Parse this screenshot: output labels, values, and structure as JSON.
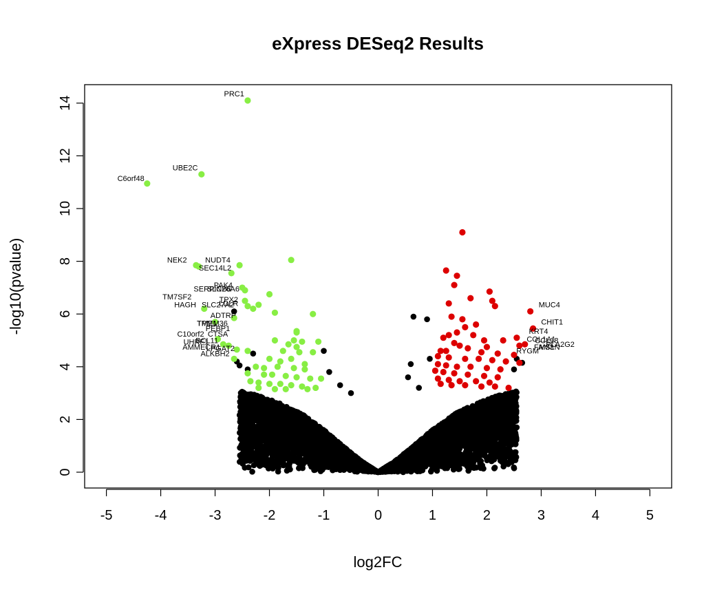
{
  "chart_data": {
    "type": "scatter",
    "title": "eXpress DESeq2 Results",
    "xlabel": "log2FC",
    "ylabel": "-log10(pvalue)",
    "xlim": [
      -5.4,
      5.4
    ],
    "ylim": [
      -0.6,
      14.7
    ],
    "xticks": [
      -5,
      -4,
      -3,
      -2,
      -1,
      0,
      1,
      2,
      3,
      4,
      5
    ],
    "xtick_labels": [
      "-5",
      "-4",
      "-3",
      "-2",
      "-1",
      "0",
      "1",
      "2",
      "3",
      "4",
      "5"
    ],
    "yticks": [
      0,
      2,
      4,
      6,
      8,
      10,
      12,
      14
    ],
    "ytick_labels": [
      "0",
      "2",
      "4",
      "6",
      "8",
      "10",
      "12",
      "14"
    ],
    "grid": false,
    "legend": "none",
    "colors": {
      "not_significant": "#000000",
      "down_regulated": "#88ee44",
      "up_regulated": "#dd0000"
    },
    "background_cloud": {
      "description_shown": "dense black cloud of non-significant genes",
      "envelope_x": [
        -2.6,
        -2.2,
        -1.8,
        -1.4,
        -1.0,
        -0.6,
        -0.3,
        0.0,
        0.3,
        0.6,
        1.0,
        1.4,
        1.8,
        2.2,
        2.6
      ],
      "envelope_y": [
        3.1,
        2.9,
        2.6,
        2.2,
        1.6,
        0.9,
        0.4,
        0.0,
        0.4,
        0.9,
        1.6,
        2.2,
        2.6,
        2.9,
        3.1
      ]
    },
    "series": [
      {
        "name": "",
        "color": "#88ee44",
        "x": [
          -2.4,
          -3.25,
          -4.25,
          -3.35,
          -2.55,
          -1.6,
          -2.7,
          -2.5,
          -2.45,
          -2.45,
          -2.0,
          -2.4,
          -2.3,
          -2.2,
          -1.5,
          -1.55,
          -1.2,
          -1.9,
          -2.65,
          -1.5,
          -1.4,
          -1.1,
          -1.9,
          -1.65,
          -1.5,
          -2.6,
          -2.4,
          -1.75,
          -1.45,
          -1.2,
          -2.65,
          -2.0,
          -1.8,
          -1.6,
          -1.35,
          -2.25,
          -2.1,
          -1.85,
          -1.55,
          -1.35,
          -2.4,
          -2.1,
          -1.95,
          -1.7,
          -1.5,
          -1.25,
          -1.05,
          -2.35,
          -2.2,
          -2.0,
          -1.8,
          -1.6,
          -1.4,
          -1.15,
          -2.2,
          -1.9,
          -1.7,
          -1.3,
          -3.0,
          -3.2,
          -3.3,
          -2.95,
          -2.75,
          -2.85
        ],
        "y": [
          14.1,
          11.3,
          10.95,
          7.85,
          7.85,
          8.05,
          7.55,
          7.0,
          6.9,
          6.5,
          6.75,
          6.3,
          6.2,
          6.35,
          5.35,
          5.0,
          6.0,
          6.05,
          5.85,
          5.3,
          4.95,
          4.95,
          5.0,
          4.85,
          4.75,
          4.65,
          4.6,
          4.6,
          4.55,
          4.55,
          4.3,
          4.3,
          4.2,
          4.3,
          4.1,
          4.0,
          3.95,
          4.0,
          3.95,
          3.9,
          3.75,
          3.7,
          3.7,
          3.65,
          3.6,
          3.55,
          3.55,
          3.45,
          3.4,
          3.35,
          3.35,
          3.3,
          3.25,
          3.2,
          3.2,
          3.15,
          3.15,
          3.15,
          5.7,
          6.2,
          7.8,
          5.05,
          4.8,
          4.85
        ]
      },
      {
        "name": "",
        "color": "#dd0000",
        "x": [
          1.55,
          2.8,
          2.85,
          1.25,
          1.45,
          2.05,
          1.4,
          1.7,
          2.1,
          2.15,
          1.3,
          1.35,
          1.55,
          1.8,
          1.6,
          1.45,
          1.3,
          1.2,
          1.75,
          1.95,
          2.3,
          2.55,
          2.6,
          2.7,
          1.4,
          1.5,
          1.65,
          2.0,
          1.25,
          1.15,
          1.9,
          2.2,
          2.5,
          1.1,
          1.3,
          1.6,
          1.85,
          2.1,
          2.35,
          2.6,
          1.1,
          1.25,
          1.45,
          1.7,
          2.0,
          2.25,
          1.05,
          1.2,
          1.4,
          1.65,
          1.95,
          2.2,
          1.1,
          1.3,
          1.5,
          1.8,
          2.05,
          1.15,
          1.35,
          1.6,
          1.9,
          2.15,
          2.4
        ],
        "y": [
          9.1,
          6.1,
          5.45,
          7.65,
          7.45,
          6.85,
          7.1,
          6.6,
          6.5,
          6.3,
          6.4,
          5.9,
          5.8,
          5.6,
          5.5,
          5.3,
          5.2,
          5.1,
          5.2,
          5.0,
          5.0,
          5.1,
          4.8,
          4.85,
          4.9,
          4.8,
          4.7,
          4.75,
          4.6,
          4.6,
          4.55,
          4.5,
          4.45,
          4.4,
          4.35,
          4.3,
          4.3,
          4.25,
          4.2,
          4.15,
          4.1,
          4.05,
          4.0,
          4.0,
          3.95,
          3.9,
          3.85,
          3.8,
          3.75,
          3.7,
          3.65,
          3.6,
          3.55,
          3.5,
          3.45,
          3.45,
          3.4,
          3.35,
          3.3,
          3.3,
          3.25,
          3.25,
          3.2
        ]
      }
    ],
    "annotations": [
      {
        "text": "PRC1",
        "x": -2.65,
        "y": 14.25
      },
      {
        "text": "UBE2C",
        "x": -3.55,
        "y": 11.45
      },
      {
        "text": "C6orf48",
        "x": -4.55,
        "y": 11.05
      },
      {
        "text": "NEK2",
        "x": -3.7,
        "y": 7.95
      },
      {
        "text": "NUDT4",
        "x": -2.95,
        "y": 7.95
      },
      {
        "text": "SEC14L2",
        "x": -3.0,
        "y": 7.65
      },
      {
        "text": "PAK4",
        "x": -2.85,
        "y": 7.0
      },
      {
        "text": "SERPINB6",
        "x": -3.05,
        "y": 6.85
      },
      {
        "text": "SLC26A6",
        "x": -2.85,
        "y": 6.85
      },
      {
        "text": "TPX2",
        "x": -2.75,
        "y": 6.45
      },
      {
        "text": "LDLR",
        "x": -2.75,
        "y": 6.3
      },
      {
        "text": "TM7SF2",
        "x": -3.7,
        "y": 6.55
      },
      {
        "text": "HAGH",
        "x": -3.55,
        "y": 6.25
      },
      {
        "text": "SLC27A2",
        "x": -2.95,
        "y": 6.25
      },
      {
        "text": "ADTRP",
        "x": -2.85,
        "y": 5.85
      },
      {
        "text": "TPM1",
        "x": -3.15,
        "y": 5.55
      },
      {
        "text": "TMEM36",
        "x": -3.05,
        "y": 5.55
      },
      {
        "text": "PEBP1",
        "x": -2.95,
        "y": 5.35
      },
      {
        "text": "C10orf2",
        "x": -3.45,
        "y": 5.15
      },
      {
        "text": "CTSA",
        "x": -2.95,
        "y": 5.15
      },
      {
        "text": "UHRF1",
        "x": -3.35,
        "y": 4.85
      },
      {
        "text": "BCL11",
        "x": -3.15,
        "y": 4.9
      },
      {
        "text": "AMMECR1",
        "x": -3.25,
        "y": 4.65
      },
      {
        "text": "LPGAT2",
        "x": -2.9,
        "y": 4.6
      },
      {
        "text": "ALKBH2",
        "x": -3.0,
        "y": 4.4
      },
      {
        "text": "MUC4",
        "x": 3.15,
        "y": 6.25
      },
      {
        "text": "CHIT1",
        "x": 3.2,
        "y": 5.6
      },
      {
        "text": "KRT4",
        "x": 2.95,
        "y": 5.25
      },
      {
        "text": "COL1A1",
        "x": 3.0,
        "y": 4.95
      },
      {
        "text": "CCL18",
        "x": 3.1,
        "y": 4.9
      },
      {
        "text": "MSLN",
        "x": 3.15,
        "y": 4.65
      },
      {
        "text": "FAM3",
        "x": 3.05,
        "y": 4.65
      },
      {
        "text": "PLA2G2",
        "x": 3.35,
        "y": 4.75
      },
      {
        "text": "RYGM",
        "x": 2.75,
        "y": 4.5
      }
    ]
  }
}
